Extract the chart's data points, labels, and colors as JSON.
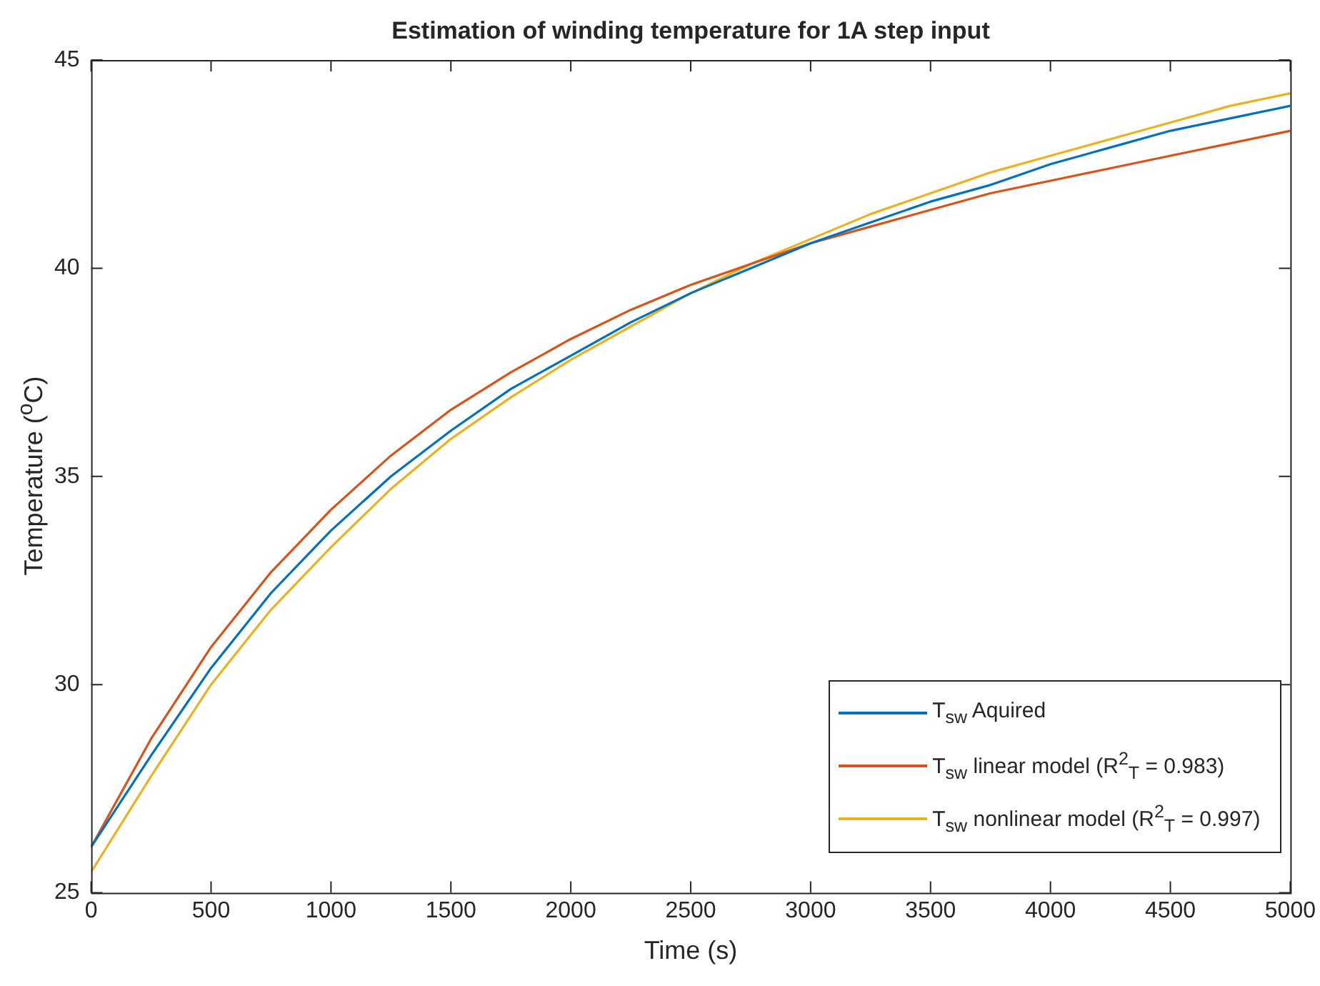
{
  "chart_data": {
    "type": "line",
    "title": "Estimation of winding temperature for 1A step input",
    "xlabel": "Time (s)",
    "ylabel": "Temperature ($^{o}$C)",
    "x": [
      0,
      250,
      500,
      750,
      1000,
      1250,
      1500,
      1750,
      2000,
      2250,
      2500,
      2750,
      3000,
      3250,
      3500,
      3750,
      4000,
      4250,
      4500,
      4750,
      5000
    ],
    "series": [
      {
        "name": "T$_{sw}$ Aquired",
        "color": "#0072bd",
        "values": [
          26.1,
          28.3,
          30.4,
          32.2,
          33.7,
          35.0,
          36.1,
          37.1,
          37.9,
          38.7,
          39.4,
          40.0,
          40.6,
          41.1,
          41.6,
          42.0,
          42.5,
          42.9,
          43.3,
          43.6,
          43.9
        ]
      },
      {
        "name": "T$_{sw}$ linear model (R$^{2}$$_{T}$ = 0.983)",
        "color": "#d95319",
        "values": [
          26.1,
          28.7,
          30.9,
          32.7,
          34.2,
          35.5,
          36.6,
          37.5,
          38.3,
          39.0,
          39.6,
          40.1,
          40.6,
          41.0,
          41.4,
          41.8,
          42.1,
          42.4,
          42.7,
          43.0,
          43.3
        ]
      },
      {
        "name": "T$_{sw}$ nonlinear model (R$^{2}$$_{T}$ = 0.997)",
        "color": "#edb120",
        "values": [
          25.5,
          27.8,
          30.0,
          31.8,
          33.3,
          34.7,
          35.9,
          36.9,
          37.8,
          38.6,
          39.4,
          40.1,
          40.7,
          41.3,
          41.8,
          42.3,
          42.7,
          43.1,
          43.5,
          43.9,
          44.2
        ]
      }
    ],
    "xlim": [
      0,
      5000
    ],
    "xticks": [
      0,
      500,
      1000,
      1500,
      2000,
      2500,
      3000,
      3500,
      4000,
      4500,
      5000
    ],
    "ylim": [
      25,
      45
    ],
    "yticks": [
      25,
      30,
      35,
      40,
      45
    ],
    "grid": false,
    "legend": "bottom right",
    "marker": "none",
    "line_style": "solid"
  }
}
